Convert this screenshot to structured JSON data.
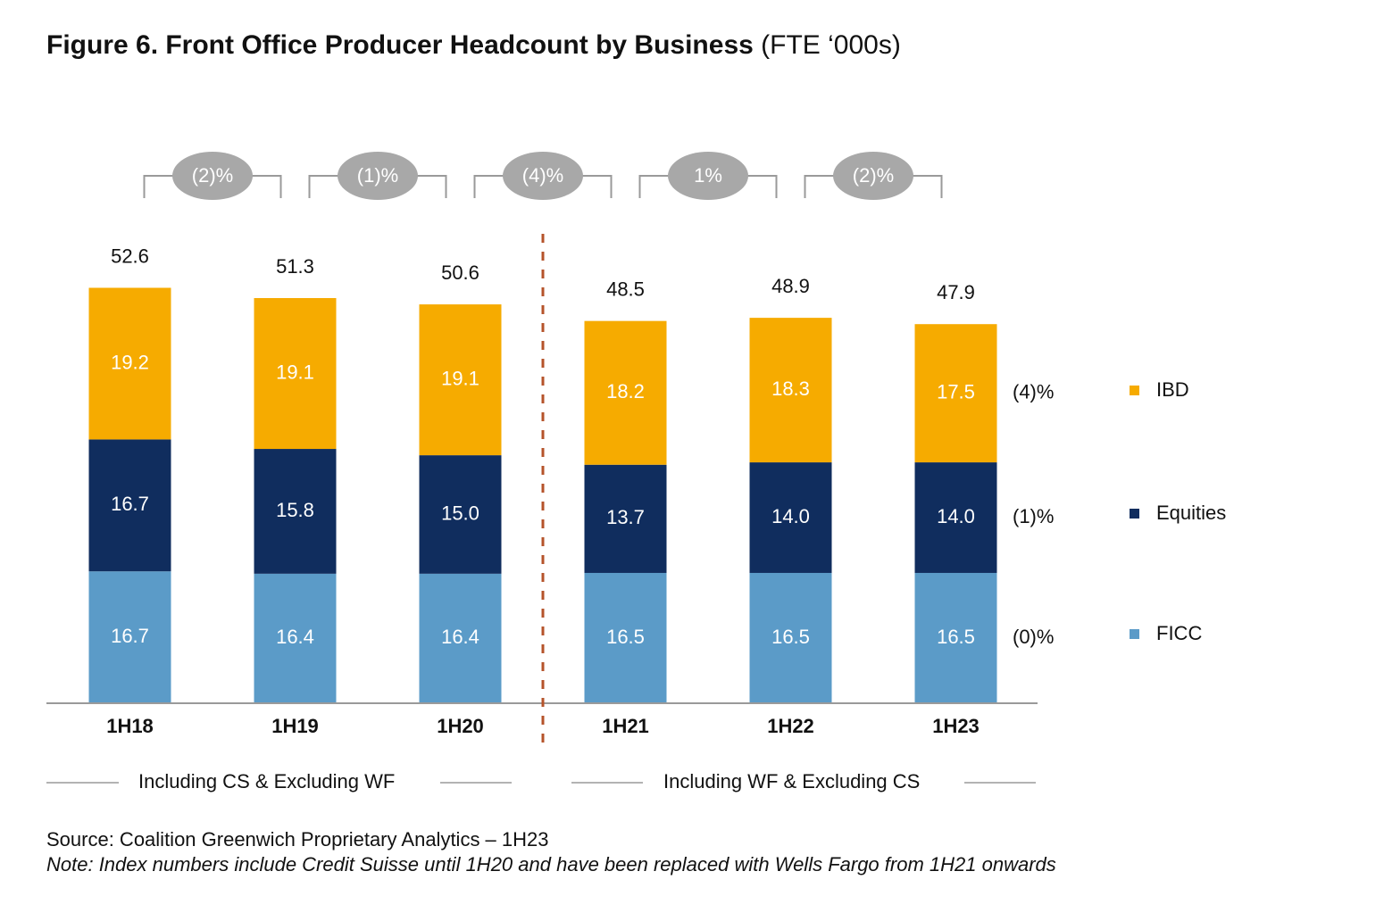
{
  "title": "Figure 6. Front Office Producer Headcount by Business",
  "title_unit": "(FTE ‘000s)",
  "source": "Source: Coalition Greenwich Proprietary Analytics – 1H23",
  "note": "Note: Index numbers include Credit Suisse until 1H20 and have been replaced with Wells Fargo from 1H21 onwards",
  "colors": {
    "ficc": "#5b9bc8",
    "equities": "#102d5e",
    "ibd": "#f6ab00",
    "bubble": "#a8a8a8",
    "divider": "#b5532a",
    "axis": "#9a9a9a"
  },
  "chart_data": {
    "type": "bar",
    "stacked": true,
    "categories": [
      "1H18",
      "1H19",
      "1H20",
      "1H21",
      "1H22",
      "1H23"
    ],
    "series": [
      {
        "name": "FICC",
        "values": [
          16.7,
          16.4,
          16.4,
          16.5,
          16.5,
          16.5
        ],
        "labels": [
          "16.7",
          "16.4",
          "16.4",
          "16.5",
          "16.5",
          "16.5"
        ]
      },
      {
        "name": "Equities",
        "values": [
          16.7,
          15.8,
          15.0,
          13.7,
          14.0,
          14.0
        ],
        "labels": [
          "16.7",
          "15.8",
          "15.0",
          "13.7",
          "14.0",
          "14.0"
        ]
      },
      {
        "name": "IBD",
        "values": [
          19.2,
          19.1,
          19.1,
          18.2,
          18.3,
          17.5
        ],
        "labels": [
          "19.2",
          "19.1",
          "19.1",
          "18.2",
          "18.3",
          "17.5"
        ]
      }
    ],
    "totals": [
      "52.6",
      "51.3",
      "50.6",
      "48.5",
      "48.9",
      "47.9"
    ],
    "period_changes": [
      "(2)%",
      "(1)%",
      "(4)%",
      "1%",
      "(2)%"
    ],
    "series_changes": [
      {
        "series": "IBD",
        "label": "(4)%"
      },
      {
        "series": "Equities",
        "label": "(1)%"
      },
      {
        "series": "FICC",
        "label": "(0)%"
      }
    ],
    "legend": [
      "IBD",
      "Equities",
      "FICC"
    ],
    "legend_position": "right",
    "groups": [
      {
        "label": "Including CS & Excluding WF",
        "categories": [
          "1H18",
          "1H19",
          "1H20"
        ]
      },
      {
        "label": "Including WF & Excluding CS",
        "categories": [
          "1H21",
          "1H22",
          "1H23"
        ]
      }
    ],
    "divider_after": "1H20",
    "ylim": [
      0,
      56
    ],
    "grid": false
  }
}
